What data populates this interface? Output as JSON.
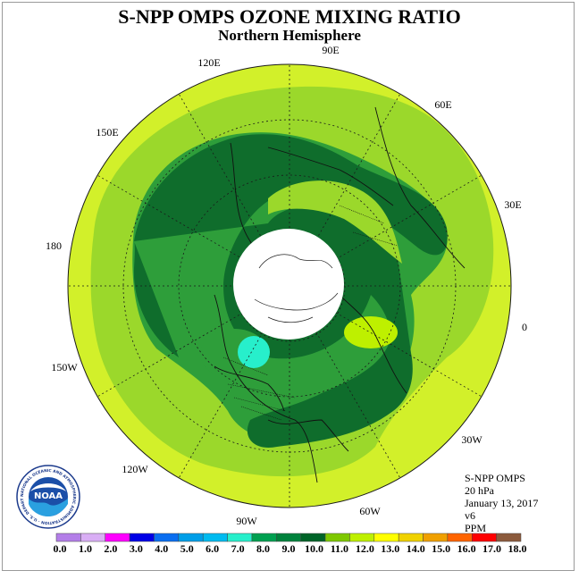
{
  "title": "S-NPP OMPS OZONE MIXING RATIO",
  "subtitle": "Northern Hemisphere",
  "longitude_labels": [
    "90E",
    "60E",
    "30E",
    "0",
    "30W",
    "60W",
    "90W",
    "120W",
    "150W",
    "180",
    "150E",
    "120E"
  ],
  "info": {
    "instrument": "S-NPP OMPS",
    "level": "20 hPa",
    "date": "January 13, 2017",
    "version": "v6",
    "units": "PPM"
  },
  "colorbar": {
    "ticks": [
      "0.0",
      "1.0",
      "2.0",
      "3.0",
      "4.0",
      "5.0",
      "6.0",
      "7.0",
      "8.0",
      "9.0",
      "10.0",
      "11.0",
      "12.0",
      "13.0",
      "14.0",
      "15.0",
      "16.0",
      "17.0",
      "18.0"
    ],
    "colors": [
      "#b37ee8",
      "#d9aef5",
      "#ff00ff",
      "#0000e6",
      "#0a6ef0",
      "#009ee8",
      "#00bbf0",
      "#27efcb",
      "#00a050",
      "#00823c",
      "#006428",
      "#7ec800",
      "#bef000",
      "#ffff00",
      "#f0d200",
      "#f0a000",
      "#ff6400",
      "#ff0000",
      "#8b5a3c"
    ]
  },
  "logo": {
    "text": "NOAA",
    "ring_text": "NATIONAL OCEANIC AND ATMOSPHERIC ADMINISTRATION · U.S. DEPARTMENT OF COMMERCE"
  },
  "colors": {
    "outer_band": "#d2f02a",
    "band_11": "#9bd82b",
    "band_10": "#2e9e3a",
    "band_9": "#0f6d2c",
    "cyan_spot": "#27efcb",
    "polar_gap": "#ffffff"
  }
}
